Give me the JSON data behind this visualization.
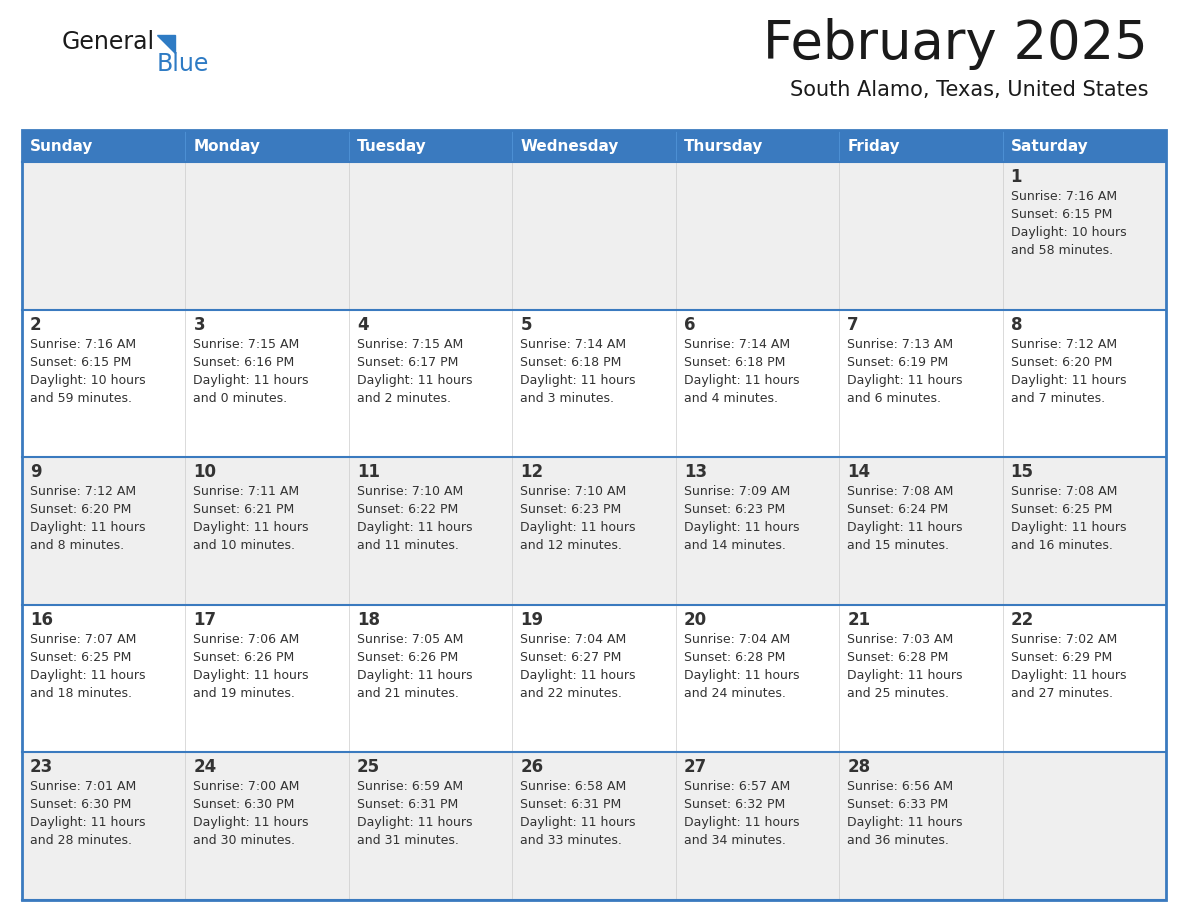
{
  "title": "February 2025",
  "subtitle": "South Alamo, Texas, United States",
  "header_bg_color": "#3a7abf",
  "header_text_color": "#ffffff",
  "row_bg_odd": "#efefef",
  "row_bg_even": "#ffffff",
  "border_color": "#3a7abf",
  "text_color": "#333333",
  "days_of_week": [
    "Sunday",
    "Monday",
    "Tuesday",
    "Wednesday",
    "Thursday",
    "Friday",
    "Saturday"
  ],
  "background_color": "#ffffff",
  "calendar_data": [
    [
      null,
      null,
      null,
      null,
      null,
      null,
      {
        "day": "1",
        "sunrise": "7:16 AM",
        "sunset": "6:15 PM",
        "daylight1": "10 hours",
        "daylight2": "and 58 minutes."
      }
    ],
    [
      {
        "day": "2",
        "sunrise": "7:16 AM",
        "sunset": "6:15 PM",
        "daylight1": "10 hours",
        "daylight2": "and 59 minutes."
      },
      {
        "day": "3",
        "sunrise": "7:15 AM",
        "sunset": "6:16 PM",
        "daylight1": "11 hours",
        "daylight2": "and 0 minutes."
      },
      {
        "day": "4",
        "sunrise": "7:15 AM",
        "sunset": "6:17 PM",
        "daylight1": "11 hours",
        "daylight2": "and 2 minutes."
      },
      {
        "day": "5",
        "sunrise": "7:14 AM",
        "sunset": "6:18 PM",
        "daylight1": "11 hours",
        "daylight2": "and 3 minutes."
      },
      {
        "day": "6",
        "sunrise": "7:14 AM",
        "sunset": "6:18 PM",
        "daylight1": "11 hours",
        "daylight2": "and 4 minutes."
      },
      {
        "day": "7",
        "sunrise": "7:13 AM",
        "sunset": "6:19 PM",
        "daylight1": "11 hours",
        "daylight2": "and 6 minutes."
      },
      {
        "day": "8",
        "sunrise": "7:12 AM",
        "sunset": "6:20 PM",
        "daylight1": "11 hours",
        "daylight2": "and 7 minutes."
      }
    ],
    [
      {
        "day": "9",
        "sunrise": "7:12 AM",
        "sunset": "6:20 PM",
        "daylight1": "11 hours",
        "daylight2": "and 8 minutes."
      },
      {
        "day": "10",
        "sunrise": "7:11 AM",
        "sunset": "6:21 PM",
        "daylight1": "11 hours",
        "daylight2": "and 10 minutes."
      },
      {
        "day": "11",
        "sunrise": "7:10 AM",
        "sunset": "6:22 PM",
        "daylight1": "11 hours",
        "daylight2": "and 11 minutes."
      },
      {
        "day": "12",
        "sunrise": "7:10 AM",
        "sunset": "6:23 PM",
        "daylight1": "11 hours",
        "daylight2": "and 12 minutes."
      },
      {
        "day": "13",
        "sunrise": "7:09 AM",
        "sunset": "6:23 PM",
        "daylight1": "11 hours",
        "daylight2": "and 14 minutes."
      },
      {
        "day": "14",
        "sunrise": "7:08 AM",
        "sunset": "6:24 PM",
        "daylight1": "11 hours",
        "daylight2": "and 15 minutes."
      },
      {
        "day": "15",
        "sunrise": "7:08 AM",
        "sunset": "6:25 PM",
        "daylight1": "11 hours",
        "daylight2": "and 16 minutes."
      }
    ],
    [
      {
        "day": "16",
        "sunrise": "7:07 AM",
        "sunset": "6:25 PM",
        "daylight1": "11 hours",
        "daylight2": "and 18 minutes."
      },
      {
        "day": "17",
        "sunrise": "7:06 AM",
        "sunset": "6:26 PM",
        "daylight1": "11 hours",
        "daylight2": "and 19 minutes."
      },
      {
        "day": "18",
        "sunrise": "7:05 AM",
        "sunset": "6:26 PM",
        "daylight1": "11 hours",
        "daylight2": "and 21 minutes."
      },
      {
        "day": "19",
        "sunrise": "7:04 AM",
        "sunset": "6:27 PM",
        "daylight1": "11 hours",
        "daylight2": "and 22 minutes."
      },
      {
        "day": "20",
        "sunrise": "7:04 AM",
        "sunset": "6:28 PM",
        "daylight1": "11 hours",
        "daylight2": "and 24 minutes."
      },
      {
        "day": "21",
        "sunrise": "7:03 AM",
        "sunset": "6:28 PM",
        "daylight1": "11 hours",
        "daylight2": "and 25 minutes."
      },
      {
        "day": "22",
        "sunrise": "7:02 AM",
        "sunset": "6:29 PM",
        "daylight1": "11 hours",
        "daylight2": "and 27 minutes."
      }
    ],
    [
      {
        "day": "23",
        "sunrise": "7:01 AM",
        "sunset": "6:30 PM",
        "daylight1": "11 hours",
        "daylight2": "and 28 minutes."
      },
      {
        "day": "24",
        "sunrise": "7:00 AM",
        "sunset": "6:30 PM",
        "daylight1": "11 hours",
        "daylight2": "and 30 minutes."
      },
      {
        "day": "25",
        "sunrise": "6:59 AM",
        "sunset": "6:31 PM",
        "daylight1": "11 hours",
        "daylight2": "and 31 minutes."
      },
      {
        "day": "26",
        "sunrise": "6:58 AM",
        "sunset": "6:31 PM",
        "daylight1": "11 hours",
        "daylight2": "and 33 minutes."
      },
      {
        "day": "27",
        "sunrise": "6:57 AM",
        "sunset": "6:32 PM",
        "daylight1": "11 hours",
        "daylight2": "and 34 minutes."
      },
      {
        "day": "28",
        "sunrise": "6:56 AM",
        "sunset": "6:33 PM",
        "daylight1": "11 hours",
        "daylight2": "and 36 minutes."
      },
      null
    ]
  ],
  "fig_width": 11.88,
  "fig_height": 9.18,
  "dpi": 100
}
